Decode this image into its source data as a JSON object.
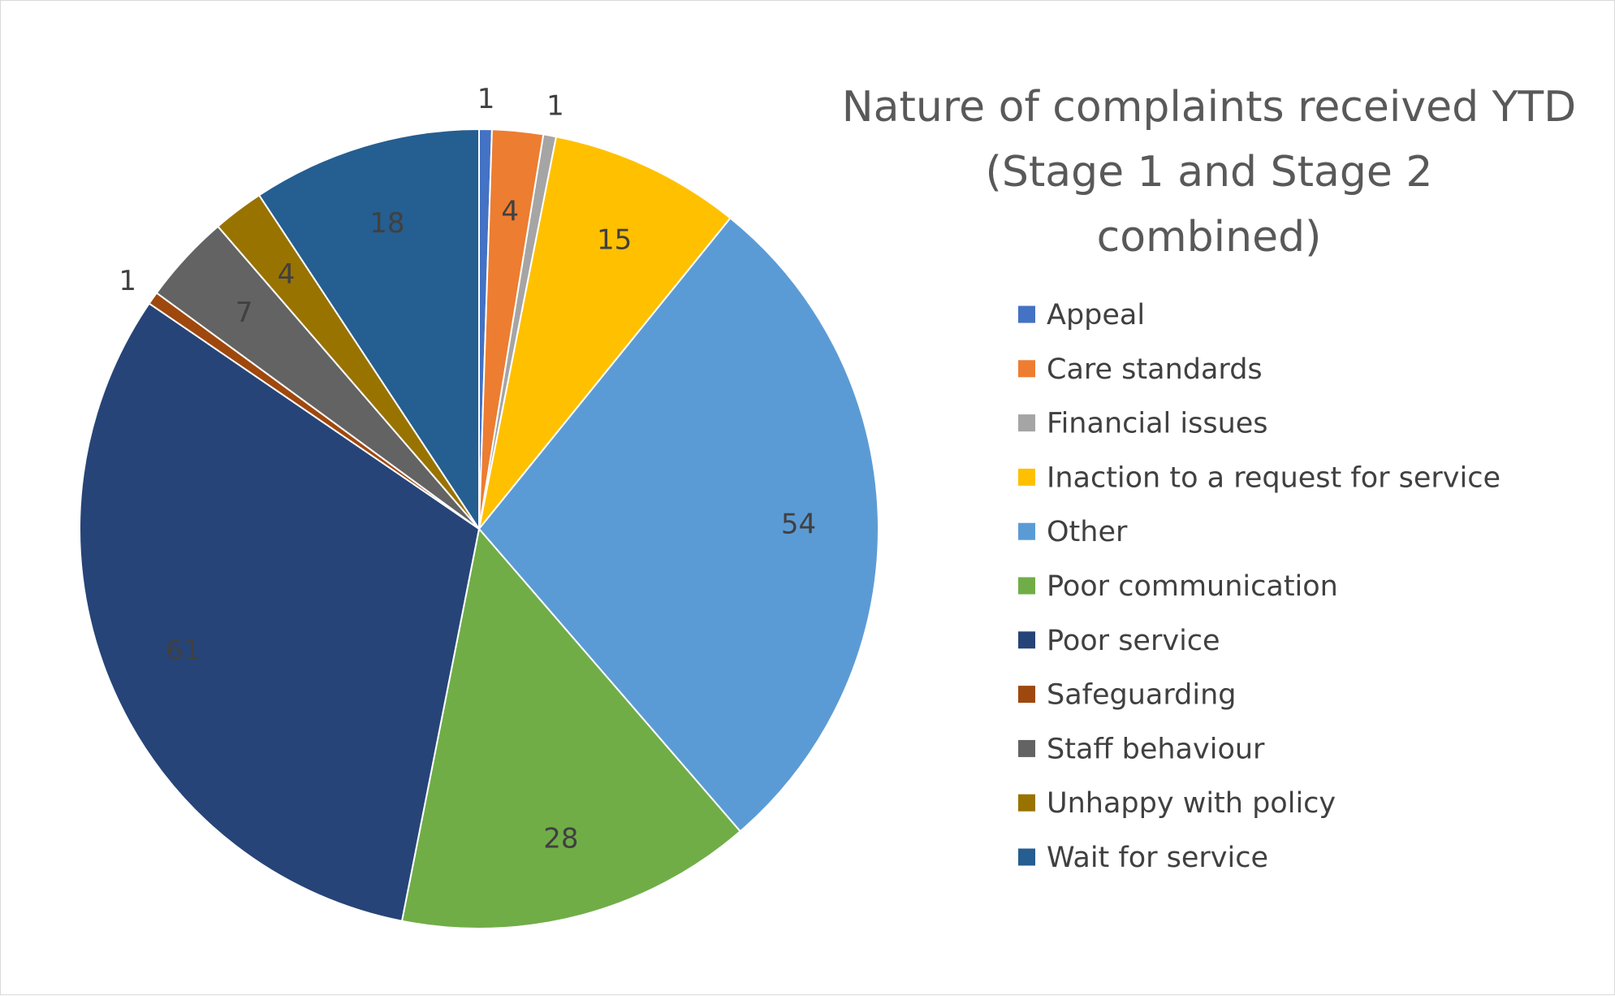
{
  "chart_data": {
    "type": "pie",
    "title_lines": [
      "Nature of complaints received YTD",
      "(Stage 1 and Stage 2",
      "combined)"
    ],
    "legend_position": "right",
    "slices": [
      {
        "label": "Appeal",
        "value": 1,
        "color": "#4472c4"
      },
      {
        "label": "Care standards",
        "value": 4,
        "color": "#ed7d31"
      },
      {
        "label": "Financial issues",
        "value": 1,
        "color": "#a5a5a5"
      },
      {
        "label": "Inaction to a request for service",
        "value": 15,
        "color": "#ffc000"
      },
      {
        "label": "Other",
        "value": 54,
        "color": "#5b9bd5"
      },
      {
        "label": "Poor communication",
        "value": 28,
        "color": "#70ad47"
      },
      {
        "label": "Poor service",
        "value": 61,
        "color": "#264478"
      },
      {
        "label": "Safeguarding",
        "value": 1,
        "color": "#9e480e"
      },
      {
        "label": "Staff behaviour",
        "value": 7,
        "color": "#636363"
      },
      {
        "label": "Unhappy with policy",
        "value": 4,
        "color": "#997300"
      },
      {
        "label": "Wait for service",
        "value": 18,
        "color": "#255e91"
      }
    ]
  }
}
